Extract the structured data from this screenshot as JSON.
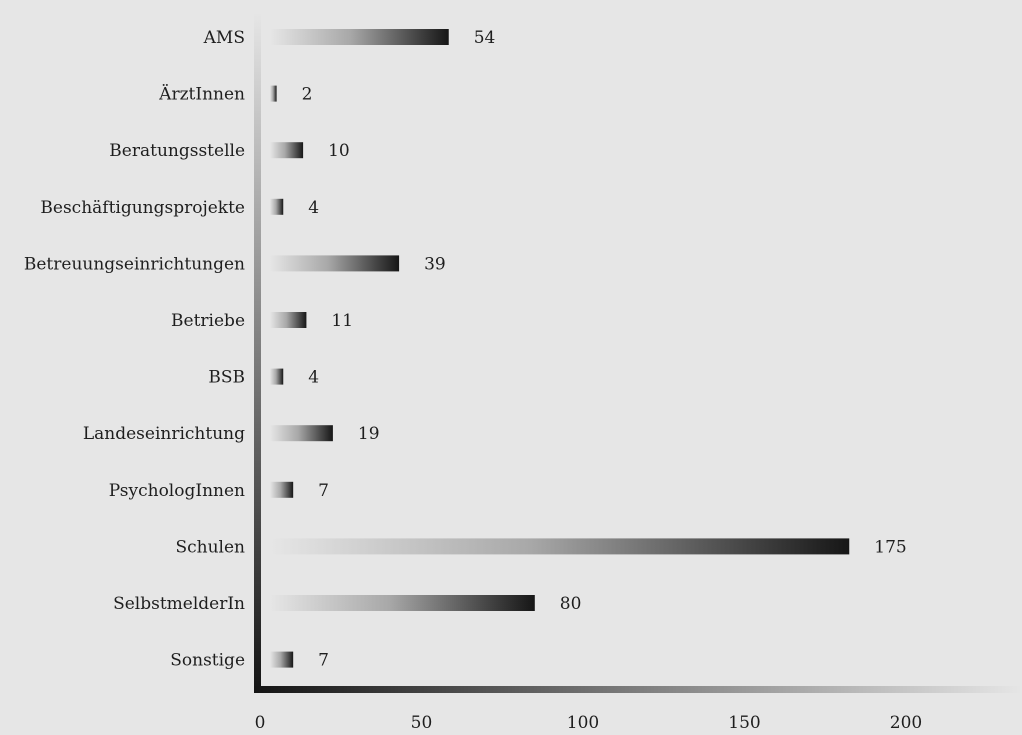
{
  "chart_data": {
    "type": "bar",
    "orientation": "horizontal",
    "categories": [
      "AMS",
      "ÄrztInnen",
      "Beratungsstelle",
      "Beschäftigungsprojekte",
      "Betreuungseinrichtungen",
      "Betriebe",
      "BSB",
      "Landeseinrichtung",
      "PsychologInnen",
      "Schulen",
      "SelbstmelderIn",
      "Sonstige"
    ],
    "values": [
      54,
      2,
      10,
      4,
      39,
      11,
      4,
      19,
      7,
      175,
      80,
      7
    ],
    "xticks": [
      0,
      50,
      100,
      150,
      200
    ],
    "xlim": [
      0,
      230
    ],
    "grid": false,
    "legend": "none",
    "colors": {
      "background": "#e6e6e6",
      "bar_start": "#e6e6e6",
      "bar_end": "#1a1a1a",
      "text": "#1e1e1e"
    }
  }
}
